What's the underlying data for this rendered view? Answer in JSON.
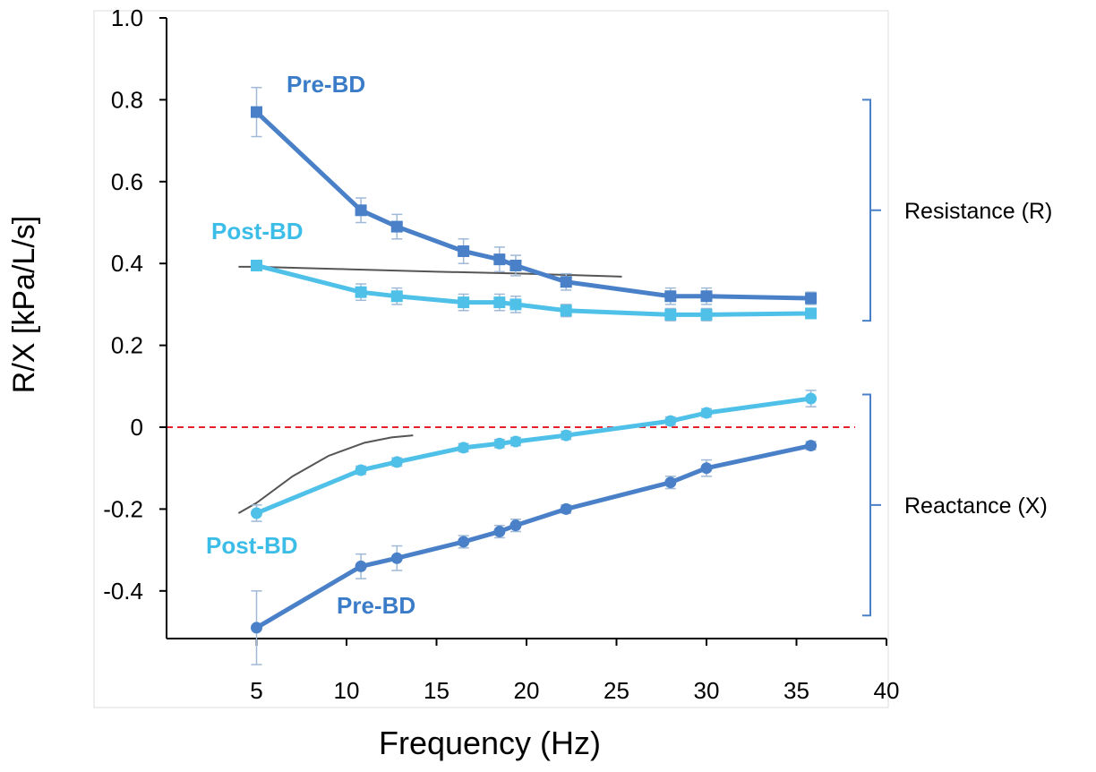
{
  "chart_data": {
    "type": "line",
    "xlabel": "Frequency  (Hz)",
    "ylabel": "R/X [kPa/L/s]",
    "xlim": [
      0,
      40
    ],
    "ylim": [
      -0.5,
      1.0
    ],
    "x_ticks": [
      "5",
      "10",
      "15",
      "20",
      "25",
      "30",
      "35",
      "40"
    ],
    "y_ticks": [
      "1.0",
      "0.8",
      "0.6",
      "0.4",
      "0.2",
      "0",
      "-0.2",
      "-0.4"
    ],
    "reference_line": {
      "y": 0,
      "style": "dashed",
      "color": "#e8202a"
    },
    "colors": {
      "pre": "#4a80c8",
      "post": "#4fc1e8",
      "trend": "#555555",
      "bracket": "#4a80c8"
    },
    "series": [
      {
        "name": "Pre-BD",
        "group": "resistance",
        "marker": "square",
        "x": [
          5,
          10.8,
          12.8,
          16.5,
          18.5,
          19.4,
          22.2,
          28,
          30,
          35.8
        ],
        "values": [
          0.77,
          0.53,
          0.49,
          0.43,
          0.41,
          0.395,
          0.355,
          0.32,
          0.32,
          0.315
        ],
        "errors": [
          0.06,
          0.03,
          0.03,
          0.03,
          0.03,
          0.025,
          0.02,
          0.02,
          0.02,
          0.015
        ]
      },
      {
        "name": "Post-BD",
        "group": "resistance",
        "marker": "square",
        "x": [
          5,
          10.8,
          12.8,
          16.5,
          18.5,
          19.4,
          22.2,
          28,
          30,
          35.8
        ],
        "values": [
          0.395,
          0.33,
          0.32,
          0.305,
          0.305,
          0.3,
          0.285,
          0.275,
          0.275,
          0.278
        ],
        "errors": [
          0.01,
          0.02,
          0.02,
          0.02,
          0.02,
          0.02,
          0.015,
          0.015,
          0.015,
          0.01
        ]
      },
      {
        "name": "Post-BD",
        "group": "reactance",
        "marker": "circle",
        "x": [
          5,
          10.8,
          12.8,
          16.5,
          18.5,
          19.4,
          22.2,
          28,
          30,
          35.8
        ],
        "values": [
          -0.21,
          -0.105,
          -0.085,
          -0.05,
          -0.04,
          -0.035,
          -0.02,
          0.015,
          0.035,
          0.07
        ],
        "errors": [
          0.02,
          0.01,
          0.01,
          0.01,
          0.01,
          0.01,
          0.01,
          0.01,
          0.01,
          0.02
        ]
      },
      {
        "name": "Pre-BD",
        "group": "reactance",
        "marker": "circle",
        "x": [
          5,
          10.8,
          12.8,
          16.5,
          18.5,
          19.4,
          22.2,
          28,
          30,
          35.8
        ],
        "values": [
          -0.49,
          -0.34,
          -0.32,
          -0.28,
          -0.255,
          -0.24,
          -0.2,
          -0.135,
          -0.1,
          -0.045
        ],
        "errors": [
          0.09,
          0.03,
          0.03,
          0.015,
          0.015,
          0.015,
          0.01,
          0.015,
          0.02,
          0.01
        ]
      }
    ],
    "trend_lines": [
      {
        "x": [
          4,
          5,
          10,
          15,
          20,
          25.3
        ],
        "values": [
          0.392,
          0.392,
          0.386,
          0.38,
          0.375,
          0.368
        ]
      },
      {
        "x": [
          4,
          5,
          7,
          9,
          11,
          12.5,
          13.7
        ],
        "values": [
          -0.21,
          -0.185,
          -0.12,
          -0.07,
          -0.038,
          -0.025,
          -0.02
        ]
      }
    ],
    "annotations": {
      "pre_r": "Pre-BD",
      "post_r": "Post-BD",
      "post_x": "Post-BD",
      "pre_x": "Pre-BD"
    },
    "brackets": [
      {
        "label": "Resistance (R)",
        "from": 0.26,
        "to": 0.8
      },
      {
        "label": "Reactance (X)",
        "from": -0.46,
        "to": 0.08
      }
    ]
  }
}
